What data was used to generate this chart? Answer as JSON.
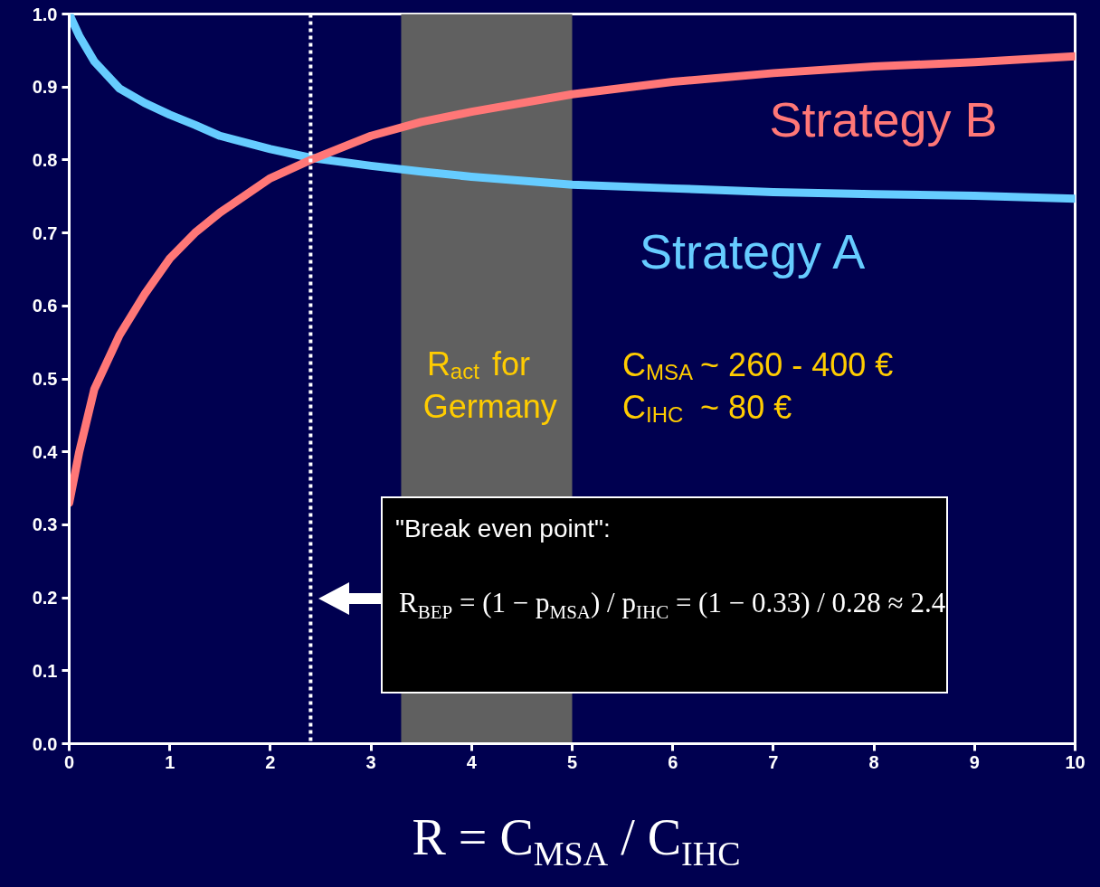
{
  "chart_data": {
    "type": "line",
    "xlabel": "R = C$_{MSA}$ / C$_{IHC}$",
    "x": [
      0,
      0.1,
      0.25,
      0.5,
      0.75,
      1,
      1.25,
      1.5,
      2,
      2.4,
      3,
      3.5,
      4,
      5,
      6,
      7,
      8,
      9,
      10
    ],
    "series": [
      {
        "name": "Strategy A",
        "color": "#66ccff",
        "values": [
          1.0,
          0.97,
          0.935,
          0.898,
          0.878,
          0.862,
          0.848,
          0.833,
          0.815,
          0.803,
          0.792,
          0.784,
          0.777,
          0.766,
          0.761,
          0.756,
          0.753,
          0.751,
          0.747
        ]
      },
      {
        "name": "Strategy B",
        "color": "#ff7777",
        "values": [
          0.33,
          0.4,
          0.486,
          0.56,
          0.616,
          0.665,
          0.7,
          0.728,
          0.775,
          0.8,
          0.833,
          0.852,
          0.866,
          0.89,
          0.907,
          0.919,
          0.928,
          0.934,
          0.942
        ]
      }
    ],
    "xlim": [
      0,
      10
    ],
    "ylim": [
      0,
      1
    ],
    "xticks": [
      0,
      1,
      2,
      3,
      4,
      5,
      6,
      7,
      8,
      9,
      10
    ],
    "yticks": [
      {
        "value": 0,
        "label": "0.0"
      },
      0.1,
      0.2,
      0.3,
      0.4,
      0.5,
      0.6,
      0.7,
      0.8,
      0.9,
      {
        "value": 1,
        "label": "1.0"
      }
    ],
    "ref_lines": [
      {
        "axis": "x",
        "value": 2.4,
        "color": "#ffffff",
        "line_style": "dotted"
      }
    ],
    "bands": [
      {
        "axis": "x",
        "from": 3.3,
        "to": 5,
        "label": "R$_{act}$ for\nGermany",
        "color": "#606060"
      }
    ],
    "annotations": [
      "C$_{MSA}$ ~ 260 - 400 €\nC$_{IHC}$ ~ 80 €",
      "\"Break even point\":",
      "R$_{BEP}$ = (1 − p$_{MSA}$) / p$_{IHC}$ = (1 − 0.33) / 0.28 ≈ 2.4"
    ],
    "grid": false,
    "legend": false,
    "marker": "none",
    "line_style": "solid"
  }
}
